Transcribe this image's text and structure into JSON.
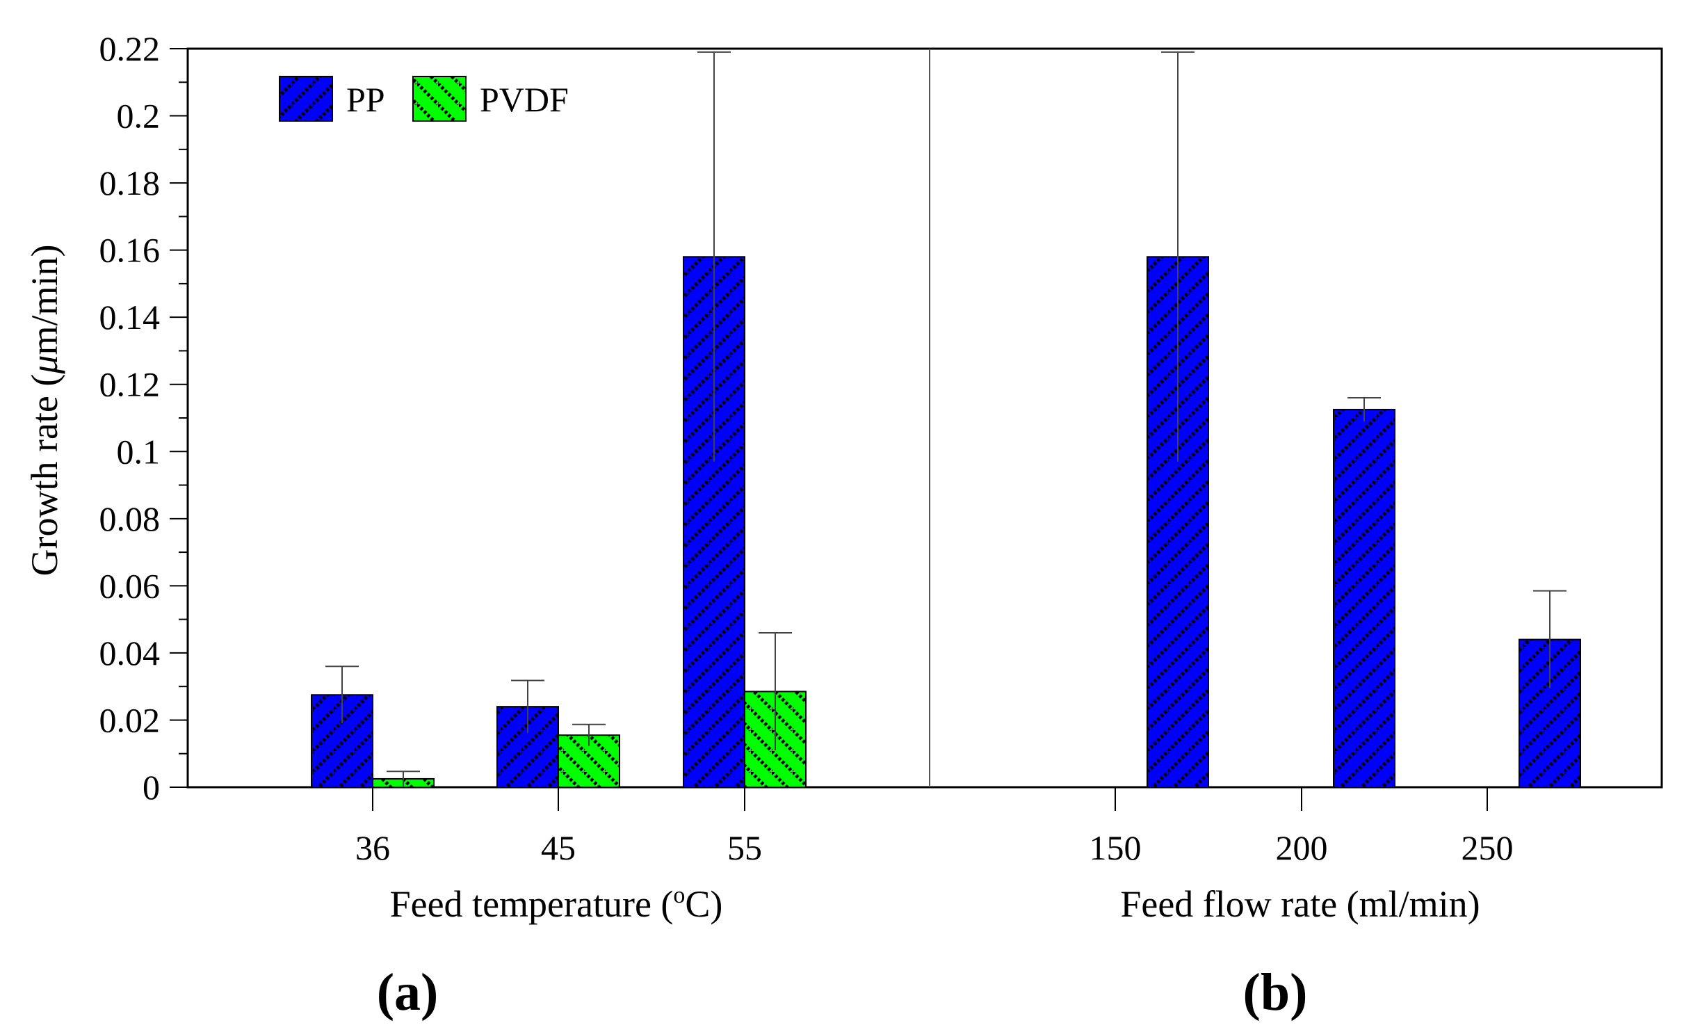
{
  "chart_data": [
    {
      "type": "bar",
      "panel_label": "(a)",
      "xlabel": "Feed temperature (",
      "xlabel_sup": "o",
      "xlabel_end": "C)",
      "ylabel": "Growth rate (",
      "ylabel_mu": "μ",
      "ylabel_end": "m/min)",
      "ylim": [
        0,
        0.22
      ],
      "yticks": [
        "0",
        "0.02",
        "0.04",
        "0.06",
        "0.08",
        "0.1",
        "0.12",
        "0.14",
        "0.16",
        "0.18",
        "0.2",
        "0.22"
      ],
      "categories": [
        "36",
        "45",
        "55"
      ],
      "series": [
        {
          "name": "PP",
          "color": "#0000ff",
          "values": [
            0.0275,
            0.024,
            0.158
          ],
          "errors": [
            0.0085,
            0.0078,
            0.061
          ]
        },
        {
          "name": "PVDF",
          "color": "#00ff00",
          "values": [
            0.0025,
            0.0155,
            0.0285
          ],
          "errors": [
            0.0022,
            0.0032,
            0.0175
          ]
        }
      ],
      "legend": "top-left"
    },
    {
      "type": "bar",
      "panel_label": "(b)",
      "xlabel": "Feed flow rate (ml/min)",
      "ylim": [
        0,
        0.22
      ],
      "categories": [
        "150",
        "200",
        "250"
      ],
      "series": [
        {
          "name": "PP",
          "color": "#0000ff",
          "values": [
            0.158,
            0.1125,
            0.044
          ],
          "errors": [
            0.061,
            0.0035,
            0.0145
          ]
        }
      ]
    }
  ]
}
